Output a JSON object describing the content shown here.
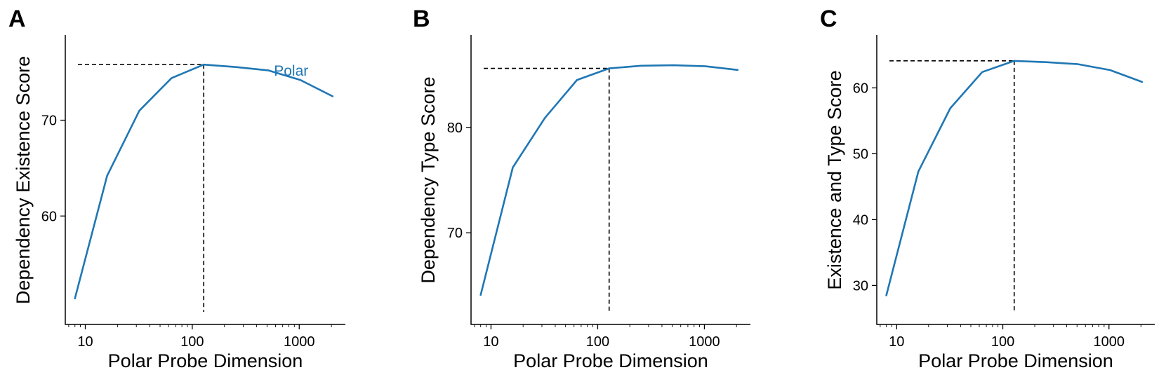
{
  "figure": {
    "colors": {
      "series": "#1f77b4",
      "axis": "#000000",
      "guide": "#000000"
    }
  },
  "chart_data": [
    {
      "type": "line",
      "panel_label": "A",
      "xlabel": "Polar Probe Dimension",
      "ylabel": "Dependency Existence Score",
      "xscale": "log",
      "xlim": [
        6.5,
        2700
      ],
      "ylim": [
        50,
        77.5
      ],
      "xticks": [
        10,
        100,
        1000
      ],
      "xtick_labels": [
        "10",
        "100",
        "1000"
      ],
      "yticks": [
        60,
        70
      ],
      "ytick_labels": [
        "60",
        "70"
      ],
      "grid": false,
      "series": [
        {
          "name": "Polar",
          "x": [
            8,
            16,
            32,
            64,
            128,
            256,
            512,
            1024,
            2048
          ],
          "y": [
            51.4,
            64.2,
            71.0,
            74.4,
            75.8,
            75.55,
            75.2,
            74.2,
            72.5
          ]
        }
      ],
      "series_label": {
        "text": "Polar",
        "x": 580,
        "y": 75.15
      },
      "reference": {
        "x": 128,
        "y": 75.8
      }
    },
    {
      "type": "line",
      "panel_label": "B",
      "xlabel": "Polar Probe Dimension",
      "ylabel": "Dependency Type Score",
      "xscale": "log",
      "xlim": [
        6.5,
        2700
      ],
      "ylim": [
        62.5,
        87.5
      ],
      "xticks": [
        10,
        100,
        1000
      ],
      "xtick_labels": [
        "10",
        "100",
        "1000"
      ],
      "yticks": [
        70,
        80
      ],
      "ytick_labels": [
        "70",
        "80"
      ],
      "grid": false,
      "series": [
        {
          "name": "",
          "x": [
            8,
            16,
            32,
            64,
            128,
            256,
            512,
            1024,
            2048
          ],
          "y": [
            64.1,
            76.2,
            80.9,
            84.5,
            85.6,
            85.85,
            85.9,
            85.8,
            85.45
          ]
        }
      ],
      "reference": {
        "x": 128,
        "y": 85.6
      }
    },
    {
      "type": "line",
      "panel_label": "C",
      "xlabel": "Polar Probe Dimension",
      "ylabel": "Existence and Type Score",
      "xscale": "log",
      "xlim": [
        6.5,
        2700
      ],
      "ylim": [
        26,
        66
      ],
      "xticks": [
        10,
        100,
        1000
      ],
      "xtick_labels": [
        "10",
        "100",
        "1000"
      ],
      "yticks": [
        30,
        40,
        50,
        60
      ],
      "ytick_labels": [
        "30",
        "40",
        "50",
        "60"
      ],
      "grid": false,
      "series": [
        {
          "name": "",
          "x": [
            8,
            16,
            32,
            64,
            128,
            256,
            512,
            1024,
            2048
          ],
          "y": [
            28.5,
            47.3,
            56.9,
            62.4,
            64.1,
            63.9,
            63.6,
            62.7,
            60.9
          ]
        }
      ],
      "reference": {
        "x": 128,
        "y": 64.1
      }
    }
  ]
}
